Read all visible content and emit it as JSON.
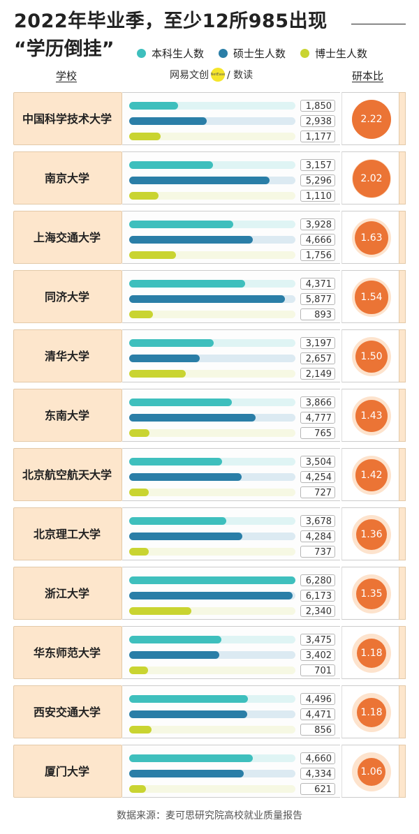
{
  "title": {
    "line1": "2022年毕业季，至少12所985出现",
    "line2": "“学历倒挂”"
  },
  "legend": [
    {
      "label": "本科生人数",
      "color": "#3ebfbd"
    },
    {
      "label": "硕士生人数",
      "color": "#2a7ea7"
    },
    {
      "label": "博士生人数",
      "color": "#c9d431"
    }
  ],
  "headers": {
    "school": "学校",
    "ratio": "研本比"
  },
  "brand": {
    "text": "网易文创",
    "badge": "NetEase",
    "suffix": "/ 数读"
  },
  "footer": "数据来源：麦可思研究院高校就业质量报告",
  "chart_data": {
    "type": "bar",
    "series_order": [
      "本科生人数",
      "硕士生人数",
      "博士生人数"
    ],
    "xlim": [
      0,
      6280
    ],
    "rows": [
      {
        "school": "中国科学技术大学",
        "values": [
          1850,
          2938,
          1177
        ],
        "labels": [
          "1,850",
          "2,938",
          "1,177"
        ],
        "ratio": 2.22,
        "ratio_label": "2.22"
      },
      {
        "school": "南京大学",
        "values": [
          3157,
          5296,
          1110
        ],
        "labels": [
          "3,157",
          "5,296",
          "1,110"
        ],
        "ratio": 2.02,
        "ratio_label": "2.02"
      },
      {
        "school": "上海交通大学",
        "values": [
          3928,
          4666,
          1756
        ],
        "labels": [
          "3,928",
          "4,666",
          "1,756"
        ],
        "ratio": 1.63,
        "ratio_label": "1.63"
      },
      {
        "school": "同济大学",
        "values": [
          4371,
          5877,
          893
        ],
        "labels": [
          "4,371",
          "5,877",
          "893"
        ],
        "ratio": 1.54,
        "ratio_label": "1.54"
      },
      {
        "school": "清华大学",
        "values": [
          3197,
          2657,
          2149
        ],
        "labels": [
          "3,197",
          "2,657",
          "2,149"
        ],
        "ratio": 1.5,
        "ratio_label": "1.50"
      },
      {
        "school": "东南大学",
        "values": [
          3866,
          4777,
          765
        ],
        "labels": [
          "3,866",
          "4,777",
          "765"
        ],
        "ratio": 1.43,
        "ratio_label": "1.43"
      },
      {
        "school": "北京航空航天大学",
        "values": [
          3504,
          4254,
          727
        ],
        "labels": [
          "3,504",
          "4,254",
          "727"
        ],
        "ratio": 1.42,
        "ratio_label": "1.42"
      },
      {
        "school": "北京理工大学",
        "values": [
          3678,
          4284,
          737
        ],
        "labels": [
          "3,678",
          "4,284",
          "737"
        ],
        "ratio": 1.36,
        "ratio_label": "1.36"
      },
      {
        "school": "浙江大学",
        "values": [
          6280,
          6173,
          2340
        ],
        "labels": [
          "6,280",
          "6,173",
          "2,340"
        ],
        "ratio": 1.35,
        "ratio_label": "1.35"
      },
      {
        "school": "华东师范大学",
        "values": [
          3475,
          3402,
          701
        ],
        "labels": [
          "3,475",
          "3,402",
          "701"
        ],
        "ratio": 1.18,
        "ratio_label": "1.18"
      },
      {
        "school": "西安交通大学",
        "values": [
          4496,
          4471,
          856
        ],
        "labels": [
          "4,496",
          "4,471",
          "856"
        ],
        "ratio": 1.18,
        "ratio_label": "1.18"
      },
      {
        "school": "厦门大学",
        "values": [
          4660,
          4334,
          621
        ],
        "labels": [
          "4,660",
          "4,334",
          "621"
        ],
        "ratio": 1.06,
        "ratio_label": "1.06"
      }
    ]
  }
}
